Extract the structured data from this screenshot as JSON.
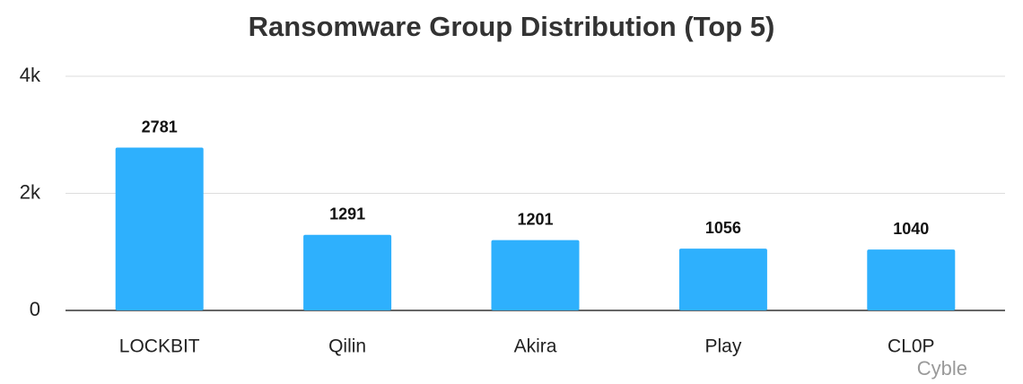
{
  "chart_data": {
    "type": "bar",
    "title": "Ransomware Group Distribution (Top 5)",
    "categories": [
      "LOCKBIT",
      "Qilin",
      "Akira",
      "Play",
      "CL0P"
    ],
    "values": [
      2781,
      1291,
      1201,
      1056,
      1040
    ],
    "color": "#2eb0fd",
    "ylim": [
      0,
      4000
    ],
    "yticks": [
      0,
      {
        "value": 2000,
        "label": "2k"
      },
      {
        "value": 4000,
        "label": "4k"
      }
    ],
    "grid": true,
    "watermark": "Cyble"
  }
}
